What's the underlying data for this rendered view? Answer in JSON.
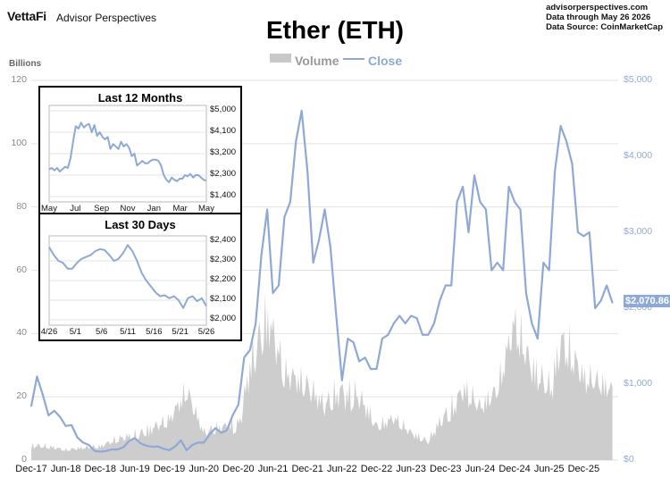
{
  "header": {
    "brand": "VettaFi",
    "brand_sub": "Advisor Perspectives",
    "source_lines": [
      "advisorperspectives.com",
      "Data through May 26 2026",
      "Data Source: CoinMarketCap"
    ]
  },
  "chart_data": [
    {
      "type": "line",
      "title": "Ether (ETH)",
      "legend": [
        "Volume",
        "Close"
      ],
      "legend_placement": "top-center",
      "ylabel_left": "Billions",
      "y_left_ticks": [
        "0",
        "20",
        "40",
        "60",
        "80",
        "100",
        "120"
      ],
      "y_left_lim": [
        0,
        120
      ],
      "y_right_ticks": [
        "$0",
        "$1,000",
        "$2,000",
        "$3,000",
        "$4,000",
        "$5,000"
      ],
      "y_right_lim": [
        0,
        5000
      ],
      "x_ticks": [
        "Dec-17",
        "Jun-18",
        "Dec-18",
        "Jun-19",
        "Dec-19",
        "Jun-20",
        "Dec-20",
        "Jun-21",
        "Dec-21",
        "Jun-22",
        "Dec-22",
        "Jun-23",
        "Dec-23",
        "Jun-24",
        "Dec-24",
        "Jun-25",
        "Dec-25"
      ],
      "current_value_label": "$2,070.86",
      "grid": true,
      "colors": {
        "close": "#8fa9d6",
        "volume": "#c8c8c8"
      },
      "series": [
        {
          "name": "Close",
          "axis": "right",
          "x_date": [
            "2017-12",
            "2018-01",
            "2018-02",
            "2018-03",
            "2018-04",
            "2018-05",
            "2018-06",
            "2018-07",
            "2018-08",
            "2018-09",
            "2018-10",
            "2018-11",
            "2018-12",
            "2019-01",
            "2019-02",
            "2019-03",
            "2019-04",
            "2019-05",
            "2019-06",
            "2019-07",
            "2019-08",
            "2019-09",
            "2019-10",
            "2019-11",
            "2019-12",
            "2020-01",
            "2020-02",
            "2020-03",
            "2020-04",
            "2020-05",
            "2020-06",
            "2020-07",
            "2020-08",
            "2020-09",
            "2020-10",
            "2020-11",
            "2020-12",
            "2021-01",
            "2021-02",
            "2021-03",
            "2021-04",
            "2021-05",
            "2021-06",
            "2021-07",
            "2021-08",
            "2021-09",
            "2021-10",
            "2021-11",
            "2021-12",
            "2022-01",
            "2022-02",
            "2022-03",
            "2022-04",
            "2022-05",
            "2022-06",
            "2022-07",
            "2022-08",
            "2022-09",
            "2022-10",
            "2022-11",
            "2022-12",
            "2023-01",
            "2023-02",
            "2023-03",
            "2023-04",
            "2023-05",
            "2023-06",
            "2023-07",
            "2023-08",
            "2023-09",
            "2023-10",
            "2023-11",
            "2023-12",
            "2024-01",
            "2024-02",
            "2024-03",
            "2024-04",
            "2024-05",
            "2024-06",
            "2024-07",
            "2024-08",
            "2024-09",
            "2024-10",
            "2024-11",
            "2024-12",
            "2025-01",
            "2025-02",
            "2025-03",
            "2025-04",
            "2025-05",
            "2025-06",
            "2025-07",
            "2025-08",
            "2025-09",
            "2025-10",
            "2025-11",
            "2025-12",
            "2026-01",
            "2026-02",
            "2026-03",
            "2026-04",
            "2026-05"
          ],
          "values": [
            710,
            1100,
            860,
            590,
            650,
            570,
            450,
            460,
            300,
            230,
            200,
            120,
            110,
            120,
            140,
            140,
            170,
            250,
            290,
            220,
            190,
            175,
            180,
            150,
            130,
            180,
            260,
            130,
            200,
            230,
            230,
            340,
            420,
            360,
            390,
            590,
            730,
            1350,
            1450,
            1800,
            2700,
            3300,
            2200,
            2300,
            3200,
            3400,
            4200,
            4600,
            3800,
            2600,
            2900,
            3300,
            2800,
            1900,
            1050,
            1600,
            1550,
            1300,
            1350,
            1200,
            1200,
            1600,
            1650,
            1800,
            1900,
            1800,
            1900,
            1870,
            1650,
            1650,
            1800,
            2100,
            2300,
            2300,
            3400,
            3600,
            3000,
            3750,
            3400,
            3300,
            2500,
            2600,
            2500,
            3600,
            3400,
            3300,
            2200,
            1800,
            1600,
            2600,
            2500,
            3800,
            4400,
            4200,
            3900,
            3000,
            2950,
            3000,
            2000,
            2100,
            2300,
            2070.86
          ]
        },
        {
          "name": "Volume",
          "axis": "left",
          "x_date": [
            "2017-12",
            "2018-06",
            "2018-12",
            "2019-06",
            "2019-12",
            "2020-03",
            "2020-06",
            "2020-12",
            "2021-02",
            "2021-05",
            "2021-08",
            "2021-12",
            "2022-03",
            "2022-06",
            "2022-09",
            "2022-12",
            "2023-03",
            "2023-06",
            "2023-09",
            "2023-12",
            "2024-03",
            "2024-06",
            "2024-09",
            "2024-12",
            "2025-03",
            "2025-06",
            "2025-08",
            "2025-12",
            "2026-03",
            "2026-05"
          ],
          "values": [
            6,
            3,
            4,
            10,
            12,
            20,
            8,
            14,
            35,
            45,
            25,
            22,
            18,
            28,
            22,
            10,
            12,
            8,
            6,
            18,
            25,
            16,
            20,
            40,
            30,
            28,
            45,
            25,
            22,
            20
          ]
        }
      ]
    },
    {
      "type": "line",
      "title": "Last 12 Months",
      "x_ticks": [
        "May",
        "Jul",
        "Sep",
        "Nov",
        "Jan",
        "Mar",
        "May"
      ],
      "y_ticks": [
        "$5,000",
        "$4,100",
        "$3,200",
        "$2,300",
        "$1,400"
      ],
      "ylim": [
        1400,
        5000
      ],
      "series": [
        {
          "name": "Close",
          "values": [
            2550,
            2600,
            2500,
            2600,
            2450,
            2550,
            2650,
            2600,
            3000,
            3700,
            4350,
            4250,
            4500,
            4300,
            4400,
            4450,
            4100,
            4400,
            3950,
            4100,
            3900,
            3800,
            3900,
            3400,
            3600,
            3500,
            3400,
            3700,
            3500,
            3600,
            3450,
            3100,
            3200,
            2700,
            2800,
            2900,
            2800,
            2800,
            2900,
            2950,
            2950,
            2900,
            2700,
            2300,
            2100,
            2000,
            2200,
            2100,
            2050,
            2150,
            2150,
            2300,
            2250,
            2350,
            2200,
            2300,
            2300,
            2200,
            2100,
            2070
          ]
        }
      ]
    },
    {
      "type": "line",
      "title": "Last 30 Days",
      "x_ticks": [
        "4/26",
        "5/1",
        "5/6",
        "5/11",
        "5/16",
        "5/21",
        "5/26"
      ],
      "y_ticks": [
        "$2,400",
        "$2,300",
        "$2,200",
        "$2,100",
        "$2,000"
      ],
      "ylim": [
        2000,
        2400
      ],
      "series": [
        {
          "name": "Close",
          "values": [
            2370,
            2330,
            2300,
            2290,
            2260,
            2260,
            2290,
            2310,
            2320,
            2330,
            2350,
            2360,
            2355,
            2330,
            2300,
            2310,
            2340,
            2380,
            2350,
            2300,
            2240,
            2200,
            2170,
            2140,
            2120,
            2125,
            2110,
            2120,
            2100,
            2060,
            2110,
            2120,
            2095,
            2110,
            2070
          ]
        }
      ]
    }
  ]
}
